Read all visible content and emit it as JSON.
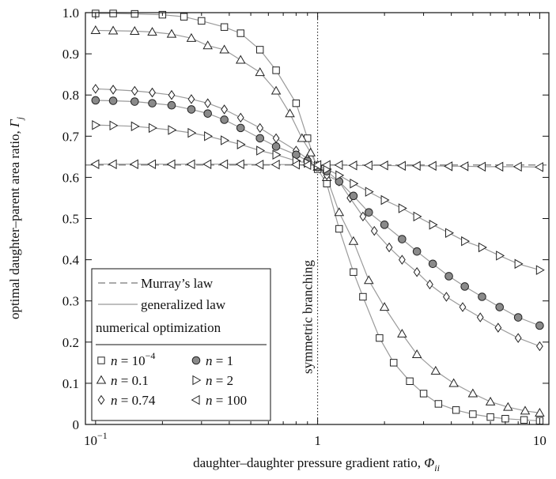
{
  "chart_data": {
    "type": "line",
    "xscale": "log",
    "xlim": [
      0.09,
      11
    ],
    "ylim": [
      0,
      1.0
    ],
    "x_ticks": [
      {
        "value": 0.1,
        "base": "10",
        "exp": "−1"
      },
      {
        "value": 1,
        "base": "1",
        "exp": ""
      },
      {
        "value": 10,
        "base": "10",
        "exp": ""
      }
    ],
    "y_ticks": [
      "0",
      "0.1",
      "0.2",
      "0.3",
      "0.4",
      "0.5",
      "0.6",
      "0.7",
      "0.8",
      "0.9",
      "1.0"
    ],
    "xlabel": "daughter–daughter pressure gradient ratio, ",
    "xlabel_symbol": "Φ",
    "xlabel_sub": "ii",
    "ylabel": "optimal daughter–parent area ratio, ",
    "ylabel_symbol": "Γ",
    "ylabel_sub": "j",
    "annotation": {
      "text": "symmetric branching",
      "x": 1
    },
    "legend": {
      "placement": "bottom-left",
      "murray_label": "Murray’s law",
      "generalized_label": "generalized law",
      "numerical_title": "numerical optimization",
      "entries": [
        {
          "marker": "square",
          "prefix": "n",
          "eq": " = ",
          "value": "10",
          "exp": "−4"
        },
        {
          "marker": "circle",
          "prefix": "n",
          "eq": " = ",
          "value": "1",
          "exp": ""
        },
        {
          "marker": "triangle-up",
          "prefix": "n",
          "eq": " = ",
          "value": "0.1",
          "exp": ""
        },
        {
          "marker": "triangle-right",
          "prefix": "n",
          "eq": " = ",
          "value": "2",
          "exp": ""
        },
        {
          "marker": "diamond",
          "prefix": "n",
          "eq": " = ",
          "value": "0.74",
          "exp": ""
        },
        {
          "marker": "triangle-left",
          "prefix": "n",
          "eq": " = ",
          "value": "100",
          "exp": ""
        }
      ]
    },
    "murray_law": {
      "x": [
        0.09,
        11
      ],
      "y": [
        0.63,
        0.63
      ]
    },
    "series": [
      {
        "marker": "square",
        "x": [
          0.1,
          0.12,
          0.15,
          0.2,
          0.25,
          0.3,
          0.38,
          0.45,
          0.55,
          0.65,
          0.8,
          0.9,
          1.0,
          1.1,
          1.25,
          1.45,
          1.6,
          1.9,
          2.2,
          2.6,
          3.0,
          3.5,
          4.2,
          5.0,
          6.0,
          7.0,
          8.5,
          10.0
        ],
        "y": [
          0.998,
          0.998,
          0.997,
          0.995,
          0.99,
          0.98,
          0.965,
          0.95,
          0.91,
          0.86,
          0.78,
          0.695,
          0.62,
          0.585,
          0.475,
          0.37,
          0.31,
          0.21,
          0.15,
          0.105,
          0.075,
          0.05,
          0.035,
          0.025,
          0.018,
          0.014,
          0.011,
          0.009
        ]
      },
      {
        "marker": "triangle-up",
        "x": [
          0.1,
          0.12,
          0.15,
          0.18,
          0.22,
          0.27,
          0.32,
          0.38,
          0.45,
          0.55,
          0.65,
          0.75,
          0.85,
          0.93,
          1.0,
          1.1,
          1.25,
          1.45,
          1.7,
          2.0,
          2.4,
          2.8,
          3.4,
          4.1,
          5.0,
          6.0,
          7.2,
          8.6,
          10.0
        ],
        "y": [
          0.957,
          0.956,
          0.955,
          0.953,
          0.948,
          0.938,
          0.92,
          0.91,
          0.885,
          0.855,
          0.81,
          0.755,
          0.695,
          0.66,
          0.625,
          0.6,
          0.515,
          0.445,
          0.35,
          0.285,
          0.22,
          0.17,
          0.13,
          0.1,
          0.075,
          0.055,
          0.042,
          0.033,
          0.028
        ]
      },
      {
        "marker": "diamond",
        "x": [
          0.1,
          0.12,
          0.15,
          0.18,
          0.22,
          0.27,
          0.32,
          0.38,
          0.45,
          0.55,
          0.65,
          0.8,
          0.9,
          1.0,
          1.1,
          1.25,
          1.4,
          1.6,
          1.8,
          2.1,
          2.4,
          2.8,
          3.2,
          3.8,
          4.5,
          5.4,
          6.5,
          8.0,
          10.0
        ],
        "y": [
          0.815,
          0.813,
          0.81,
          0.806,
          0.8,
          0.79,
          0.78,
          0.765,
          0.745,
          0.72,
          0.695,
          0.665,
          0.645,
          0.63,
          0.605,
          0.59,
          0.55,
          0.505,
          0.47,
          0.43,
          0.4,
          0.37,
          0.34,
          0.31,
          0.285,
          0.26,
          0.235,
          0.21,
          0.19
        ]
      },
      {
        "marker": "circle",
        "x": [
          0.1,
          0.12,
          0.15,
          0.18,
          0.22,
          0.27,
          0.32,
          0.38,
          0.45,
          0.55,
          0.65,
          0.8,
          0.9,
          1.0,
          1.1,
          1.25,
          1.45,
          1.7,
          2.0,
          2.4,
          2.8,
          3.3,
          3.9,
          4.6,
          5.5,
          6.6,
          8.0,
          10.0
        ],
        "y": [
          0.787,
          0.786,
          0.784,
          0.78,
          0.775,
          0.765,
          0.755,
          0.74,
          0.72,
          0.695,
          0.675,
          0.655,
          0.64,
          0.625,
          0.615,
          0.59,
          0.555,
          0.515,
          0.485,
          0.45,
          0.42,
          0.39,
          0.36,
          0.335,
          0.31,
          0.285,
          0.26,
          0.24
        ]
      },
      {
        "marker": "triangle-right",
        "x": [
          0.1,
          0.12,
          0.15,
          0.18,
          0.22,
          0.27,
          0.32,
          0.38,
          0.45,
          0.55,
          0.65,
          0.8,
          0.9,
          1.0,
          1.1,
          1.25,
          1.45,
          1.7,
          2.0,
          2.4,
          2.8,
          3.3,
          3.9,
          4.6,
          5.5,
          6.6,
          8.0,
          10.0
        ],
        "y": [
          0.727,
          0.726,
          0.724,
          0.72,
          0.715,
          0.708,
          0.7,
          0.69,
          0.68,
          0.665,
          0.655,
          0.64,
          0.635,
          0.628,
          0.62,
          0.605,
          0.585,
          0.565,
          0.545,
          0.525,
          0.505,
          0.485,
          0.465,
          0.445,
          0.43,
          0.41,
          0.39,
          0.375
        ]
      },
      {
        "marker": "triangle-left",
        "x": [
          0.1,
          0.12,
          0.15,
          0.18,
          0.22,
          0.27,
          0.32,
          0.38,
          0.45,
          0.55,
          0.65,
          0.8,
          0.9,
          1.0,
          1.1,
          1.25,
          1.45,
          1.7,
          2.0,
          2.4,
          2.8,
          3.3,
          3.9,
          4.6,
          5.5,
          6.6,
          8.0,
          10.0
        ],
        "y": [
          0.632,
          0.632,
          0.632,
          0.632,
          0.632,
          0.632,
          0.632,
          0.632,
          0.632,
          0.631,
          0.631,
          0.631,
          0.63,
          0.63,
          0.63,
          0.63,
          0.629,
          0.629,
          0.629,
          0.628,
          0.628,
          0.628,
          0.627,
          0.627,
          0.626,
          0.626,
          0.626,
          0.625
        ]
      }
    ]
  }
}
